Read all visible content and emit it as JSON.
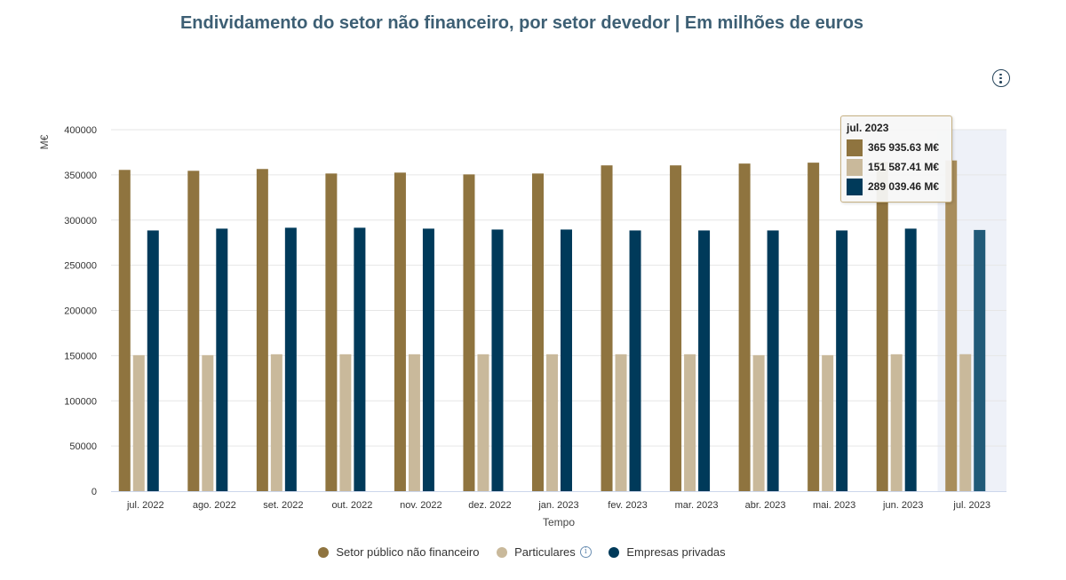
{
  "header": {
    "title": "Endividamento do setor não financeiro, por setor devedor | Em milhões de euros"
  },
  "toolbar": {
    "menu_icon": "kebab-menu-icon"
  },
  "colors": {
    "series1": "#8f743f",
    "series2": "#c9b99b",
    "series3": "#003a5a",
    "highlight_band": "#eef1f8",
    "title": "#3d5f74"
  },
  "chart_data": {
    "type": "bar",
    "title": "Endividamento do setor não financeiro, por setor devedor | Em milhões de euros",
    "xlabel": "Tempo",
    "ylabel": "M€",
    "ylim": [
      0,
      400000
    ],
    "yticks": [
      0,
      50000,
      100000,
      150000,
      200000,
      250000,
      300000,
      350000,
      400000
    ],
    "grid": true,
    "legend_position": "bottom-center",
    "categories": [
      "jul. 2022",
      "ago. 2022",
      "set. 2022",
      "out. 2022",
      "nov. 2022",
      "dez. 2022",
      "jan. 2023",
      "fev. 2023",
      "mar. 2023",
      "abr. 2023",
      "mai. 2023",
      "jun. 2023",
      "jul. 2023"
    ],
    "series": [
      {
        "name": "Setor público não financeiro",
        "color": "#8f743f",
        "values": [
          355500,
          354500,
          356500,
          351500,
          352500,
          350500,
          351500,
          360500,
          360500,
          362500,
          363500,
          364500,
          365935.63
        ]
      },
      {
        "name": "Particulares",
        "color": "#c9b99b",
        "values": [
          150500,
          150500,
          151500,
          151500,
          151500,
          151500,
          151500,
          151500,
          151500,
          150500,
          150500,
          151500,
          151587.41
        ]
      },
      {
        "name": "Empresas privadas",
        "color": "#003a5a",
        "values": [
          288500,
          290500,
          291500,
          291500,
          290500,
          289500,
          289500,
          288500,
          288500,
          288500,
          288500,
          290500,
          289039.46
        ]
      }
    ],
    "highlighted_category": "jul. 2023"
  },
  "legend": {
    "items": [
      {
        "label": "Setor público não financeiro",
        "color": "#8f743f"
      },
      {
        "label": "Particulares",
        "color": "#c9b99b",
        "info": "i"
      },
      {
        "label": "Empresas privadas",
        "color": "#003a5a"
      }
    ]
  },
  "tooltip": {
    "title": "jul. 2023",
    "rows": [
      {
        "text": "365 935.63 M€",
        "color": "#8f743f"
      },
      {
        "text": "151 587.41 M€",
        "color": "#c9b99b"
      },
      {
        "text": "289 039.46 M€",
        "color": "#003a5a"
      }
    ]
  }
}
